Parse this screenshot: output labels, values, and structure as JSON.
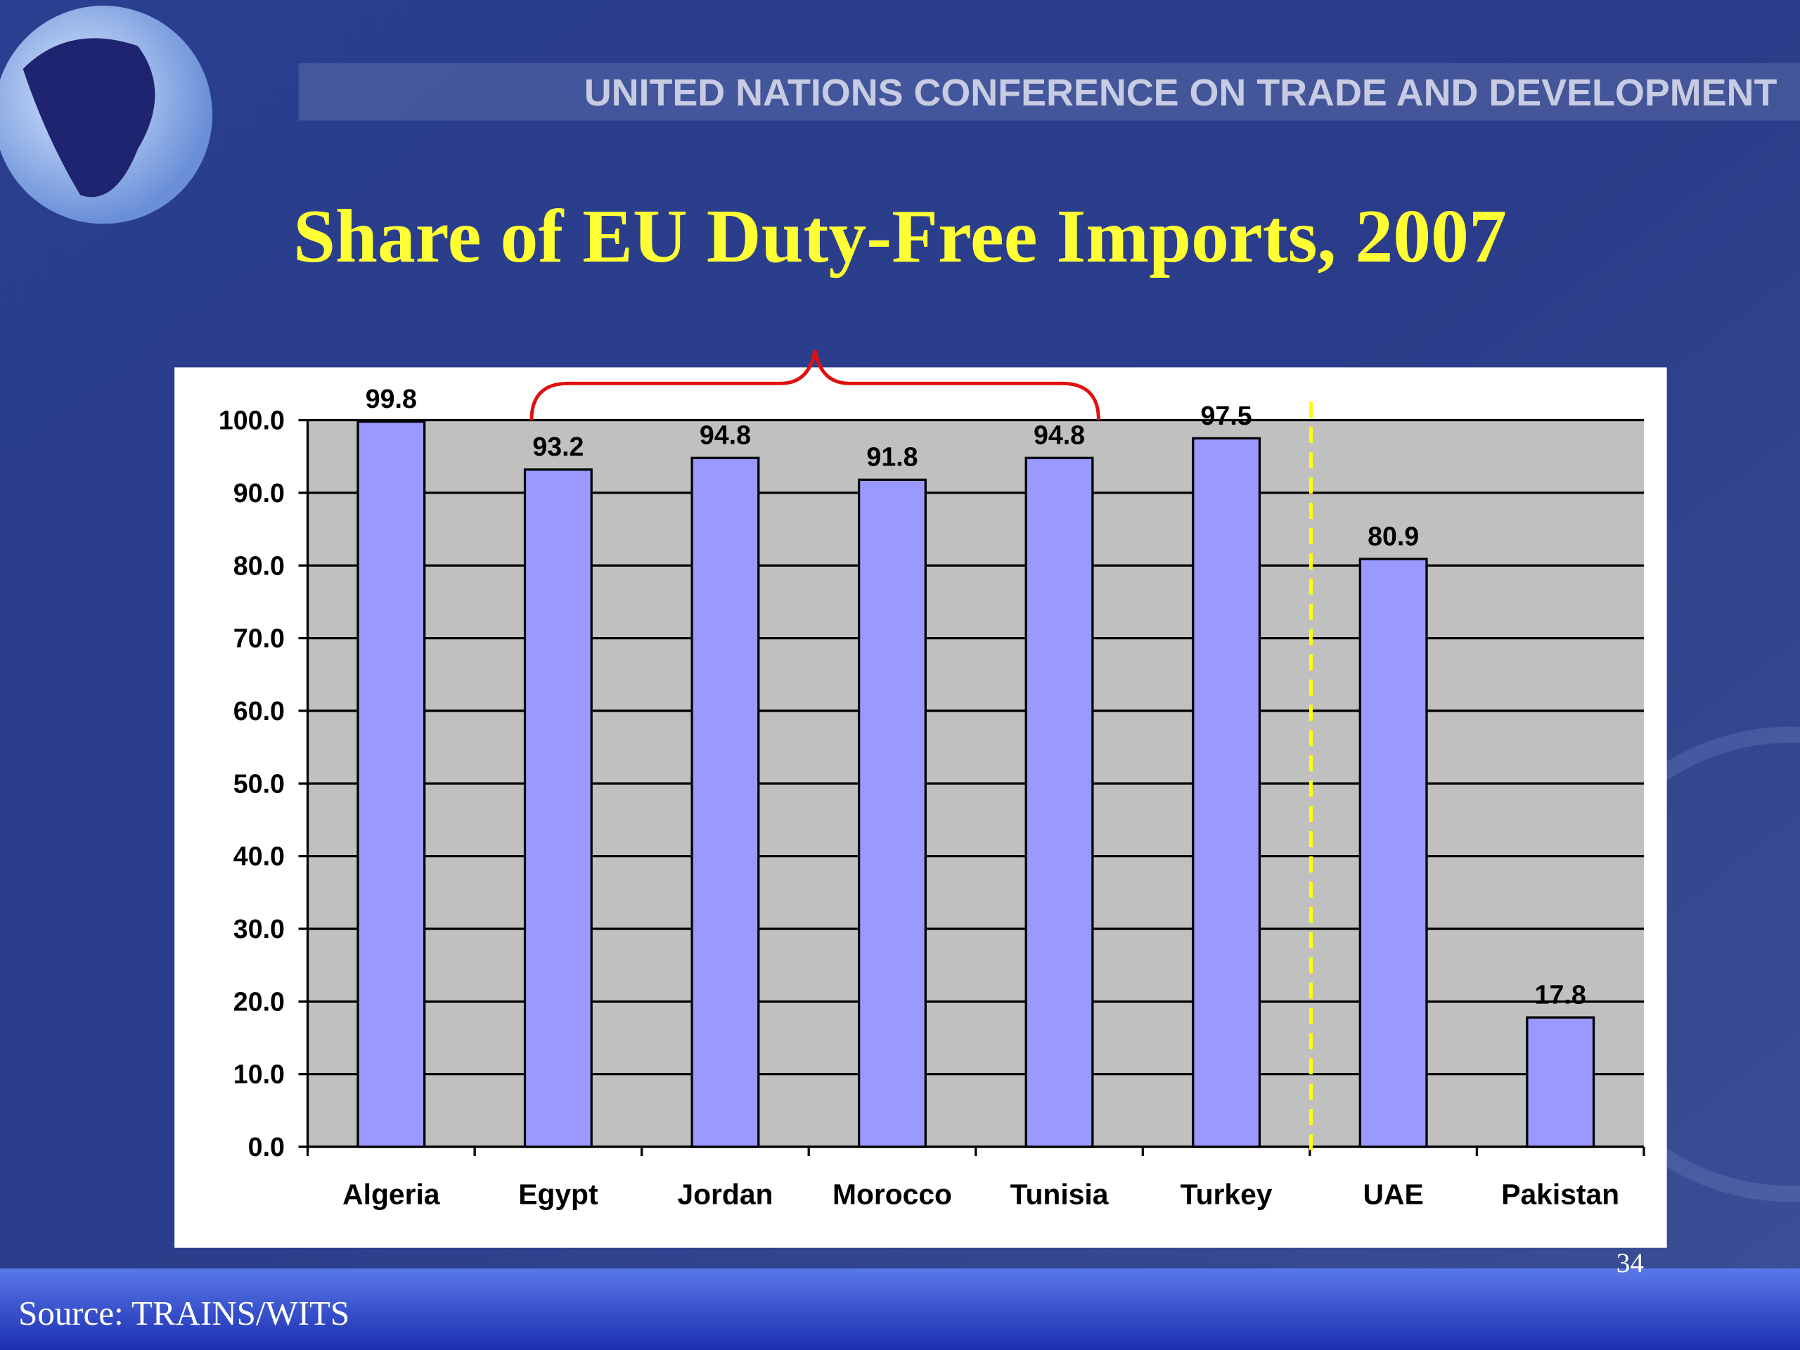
{
  "header": "UNITED NATIONS CONFERENCE ON TRADE AND DEVELOPMENT",
  "page_number": "34",
  "source": "Source: TRAINS/WITS",
  "chart_data": {
    "type": "bar",
    "title": "Share of EU Duty-Free Imports, 2007",
    "categories": [
      "Algeria",
      "Egypt",
      "Jordan",
      "Morocco",
      "Tunisia",
      "Turkey",
      "UAE",
      "Pakistan"
    ],
    "values": [
      99.8,
      93.2,
      94.8,
      91.8,
      94.8,
      97.5,
      80.9,
      17.8
    ],
    "color": "#9999ff",
    "ylim": [
      0,
      100
    ],
    "yticks": [
      {
        "value": 0,
        "label": "0.0"
      },
      {
        "value": 10,
        "label": "10.0"
      },
      {
        "value": 20,
        "label": "20.0"
      },
      {
        "value": 30,
        "label": "30.0"
      },
      {
        "value": 40,
        "label": "40.0"
      },
      {
        "value": 50,
        "label": "50.0"
      },
      {
        "value": 60,
        "label": "60.0"
      },
      {
        "value": 70,
        "label": "70.0"
      },
      {
        "value": 80,
        "label": "80.0"
      },
      {
        "value": 90,
        "label": "90.0"
      },
      {
        "value": 100,
        "label": "100.0"
      }
    ],
    "grid": true
  }
}
